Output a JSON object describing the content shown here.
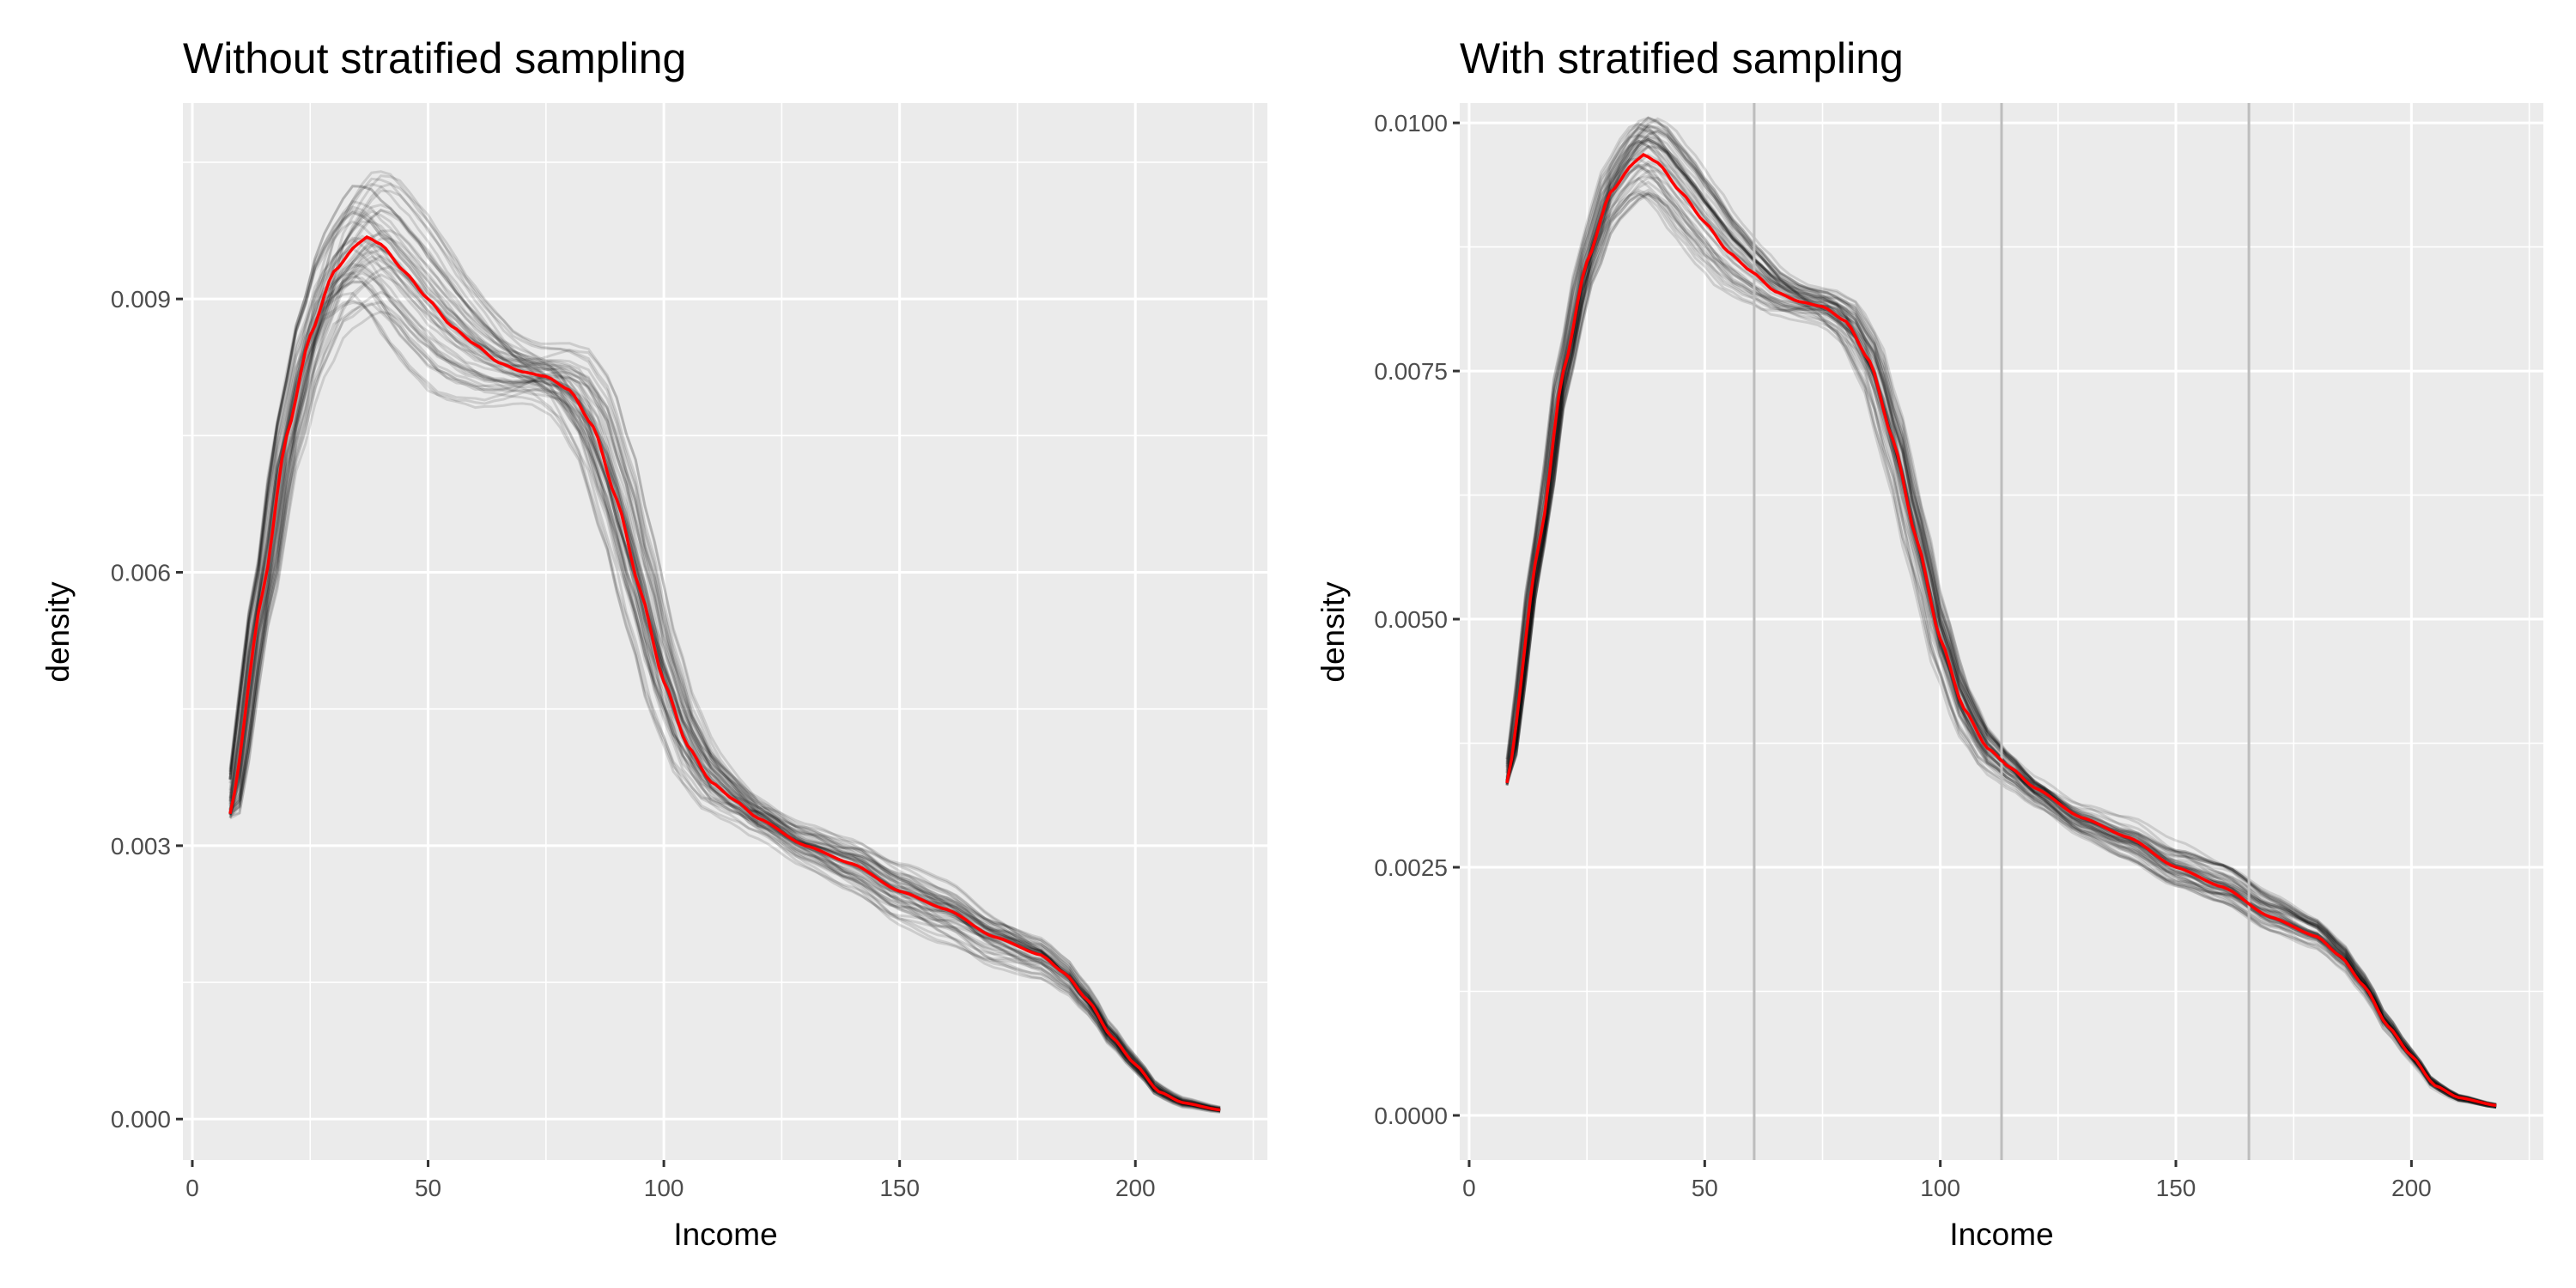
{
  "chart_data": [
    {
      "type": "line",
      "title": "Without stratified sampling",
      "xlabel": "Income",
      "ylabel": "density",
      "xlim": [
        -2,
        228
      ],
      "ylim": [
        -0.00045,
        0.01115
      ],
      "x_ticks": [
        0,
        50,
        100,
        150,
        200
      ],
      "x_tick_labels": [
        "0",
        "50",
        "100",
        "150",
        "200"
      ],
      "y_ticks": [
        0,
        0.003,
        0.006,
        0.009
      ],
      "y_tick_labels": [
        "0.000",
        "0.003",
        "0.006",
        "0.009"
      ],
      "grid": true,
      "background": "#ebebeb",
      "sample_curves": {
        "color": "#000000",
        "opacity": 0.13,
        "spread": "wide"
      },
      "reference_lines_x": [],
      "series": [
        {
          "color": "#ff0000",
          "x": [
            8,
            15,
            20,
            25,
            30,
            35,
            37,
            40,
            45,
            50,
            55,
            60,
            65,
            70,
            75,
            80,
            85,
            90,
            95,
            100,
            105,
            110,
            115,
            120,
            130,
            140,
            150,
            160,
            170,
            180,
            185,
            190,
            195,
            200,
            205,
            210,
            218
          ],
          "y": [
            0.00335,
            0.0058,
            0.0075,
            0.0086,
            0.0093,
            0.0096,
            0.00968,
            0.0096,
            0.0093,
            0.009,
            0.0087,
            0.0085,
            0.0083,
            0.0082,
            0.00815,
            0.008,
            0.0076,
            0.0068,
            0.0058,
            0.0048,
            0.0041,
            0.0037,
            0.0035,
            0.0033,
            0.003,
            0.0028,
            0.0025,
            0.0023,
            0.002,
            0.0018,
            0.0016,
            0.0013,
            0.0009,
            0.0006,
            0.0003,
            0.00018,
            0.0001
          ]
        }
      ]
    },
    {
      "type": "line",
      "title": "With stratified sampling",
      "xlabel": "Income",
      "ylabel": "density",
      "xlim": [
        -2,
        228
      ],
      "ylim": [
        -0.00045,
        0.0102
      ],
      "x_ticks": [
        0,
        50,
        100,
        150,
        200
      ],
      "x_tick_labels": [
        "0",
        "50",
        "100",
        "150",
        "200"
      ],
      "y_ticks": [
        0,
        0.0025,
        0.005,
        0.0075,
        0.01
      ],
      "y_tick_labels": [
        "0.0000",
        "0.0025",
        "0.0050",
        "0.0075",
        "0.0100"
      ],
      "grid": true,
      "background": "#ebebeb",
      "sample_curves": {
        "color": "#000000",
        "opacity": 0.13,
        "spread": "narrow"
      },
      "reference_lines_x": [
        60.5,
        113,
        165.5
      ],
      "series": [
        {
          "color": "#ff0000",
          "x": [
            8,
            15,
            20,
            25,
            30,
            35,
            37,
            40,
            45,
            50,
            55,
            60,
            65,
            70,
            75,
            80,
            85,
            90,
            95,
            100,
            105,
            110,
            115,
            120,
            130,
            140,
            150,
            160,
            170,
            180,
            185,
            190,
            195,
            200,
            205,
            210,
            218
          ],
          "y": [
            0.00335,
            0.0058,
            0.0075,
            0.0086,
            0.0093,
            0.0096,
            0.00968,
            0.0096,
            0.0093,
            0.009,
            0.0087,
            0.0085,
            0.0083,
            0.0082,
            0.00815,
            0.008,
            0.0076,
            0.0068,
            0.0058,
            0.0048,
            0.0041,
            0.0037,
            0.0035,
            0.0033,
            0.003,
            0.0028,
            0.0025,
            0.0023,
            0.002,
            0.0018,
            0.0016,
            0.0013,
            0.0009,
            0.0006,
            0.0003,
            0.00018,
            0.0001
          ]
        }
      ]
    }
  ]
}
